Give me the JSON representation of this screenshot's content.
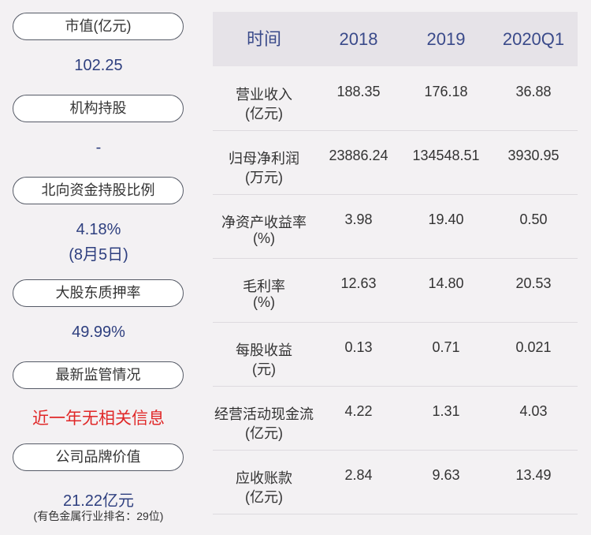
{
  "left": {
    "items": [
      {
        "label": "市值(亿元)",
        "value": "102.25"
      },
      {
        "label": "机构持股",
        "value": "-"
      },
      {
        "label": "北向资金持股比例",
        "value": "4.18%",
        "note": "(8月5日)"
      },
      {
        "label": "大股东质押率",
        "value": "49.99%"
      },
      {
        "label": "最新监管情况",
        "value": "近一年无相关信息"
      },
      {
        "label": "公司品牌价值",
        "value": "21.22亿元",
        "note": "(有色金属行业排名：29位)"
      }
    ]
  },
  "table": {
    "header": [
      "时间",
      "2018",
      "2019",
      "2020Q1"
    ],
    "rows": [
      {
        "name": "营业收入",
        "unit": "(亿元)",
        "cells": [
          "188.35",
          "176.18",
          "36.88"
        ]
      },
      {
        "name": "归母净利润",
        "unit": "(万元)",
        "cells": [
          "23886.24",
          "134548.51",
          "3930.95"
        ]
      },
      {
        "name": "净资产收益率",
        "unit": "(%)",
        "cells": [
          "3.98",
          "19.40",
          "0.50"
        ]
      },
      {
        "name": "毛利率",
        "unit": "(%)",
        "cells": [
          "12.63",
          "14.80",
          "20.53"
        ]
      },
      {
        "name": "每股收益",
        "unit": "(元)",
        "cells": [
          "0.13",
          "0.71",
          "0.021"
        ]
      },
      {
        "name": "经营活动现金流",
        "unit": "(亿元)",
        "cells": [
          "4.22",
          "1.31",
          "4.03"
        ]
      },
      {
        "name": "应收账款",
        "unit": "(亿元)",
        "cells": [
          "2.84",
          "9.63",
          "13.49"
        ]
      }
    ]
  }
}
